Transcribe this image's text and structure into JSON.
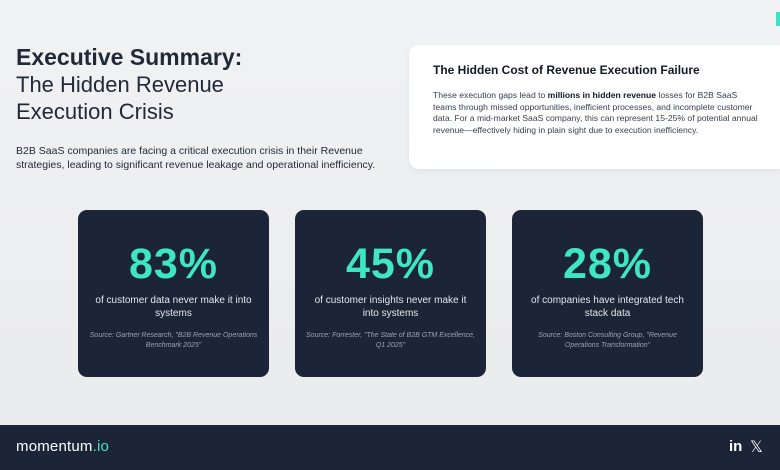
{
  "header": {
    "title_line1": "Executive Summary:",
    "title_line2": "The Hidden Revenue",
    "title_line3": "Execution Crisis",
    "intro": "B2B SaaS companies are facing a critical execution crisis in their Revenue strategies, leading to significant revenue leakage and operational inefficiency."
  },
  "cost_card": {
    "title": "The Hidden Cost of Revenue Execution Failure",
    "body_before": "These execution gaps lead to ",
    "body_bold": "millions in hidden revenue",
    "body_after": " losses for B2B SaaS teams through missed opportunities, inefficient processes, and incomplete customer data. For a mid-market SaaS company, this can represent 15-25% of potential annual revenue—effectively hiding in plain sight due to execution inefficiency."
  },
  "stats": [
    {
      "value": "83%",
      "description": "of customer data never make it into systems",
      "source": "Source: Gartner Research, \"B2B Revenue Operations Benchmark 2025\""
    },
    {
      "value": "45%",
      "description": "of customer insights never make it into systems",
      "source": "Source: Forrester, \"The State of B2B GTM Excellence, Q1 2025\""
    },
    {
      "value": "28%",
      "description": "of companies have integrated tech stack data",
      "source": "Source: Boston Consulting Group, \"Revenue Operations Transformation\""
    }
  ],
  "footer": {
    "brand_name": "momentum",
    "brand_tld": ".io",
    "linkedin": "in",
    "x": "𝕏"
  },
  "colors": {
    "accent": "#3ee6c4",
    "dark": "#1b2537"
  }
}
